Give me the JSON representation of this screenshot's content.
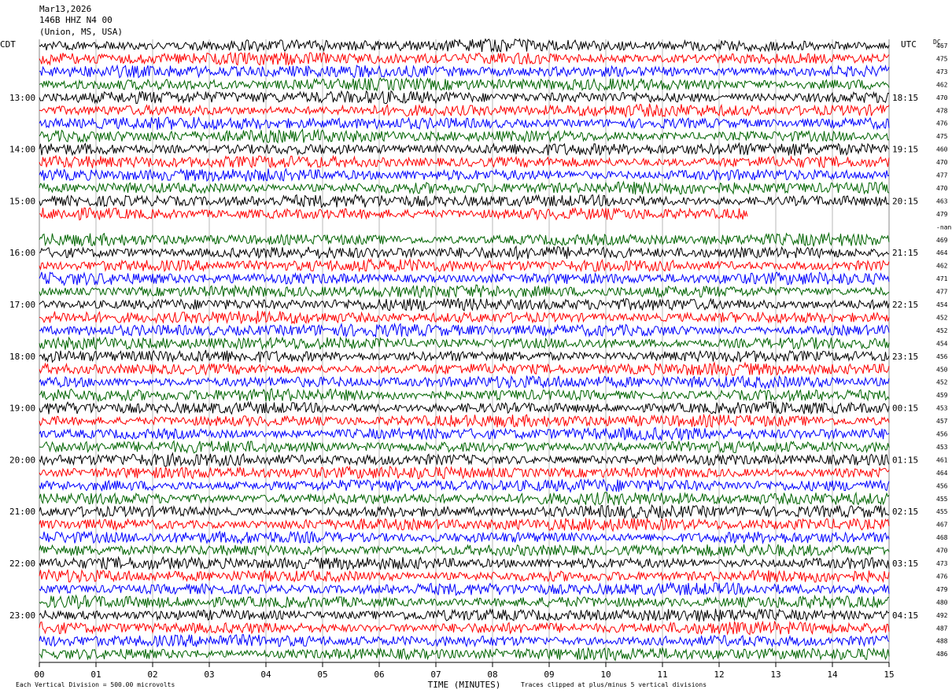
{
  "header": {
    "date": "Mar13,2026",
    "station": "146B HHZ N4 00",
    "location": "(Union, MS, USA)"
  },
  "left_axis_label": "CDT",
  "right_axis_label": "UTC",
  "dc_label": "DC",
  "colors": {
    "black": "#000000",
    "red": "#ff0000",
    "blue": "#0000ff",
    "green": "#006400",
    "grid": "#888888"
  },
  "chart_data": {
    "type": "line",
    "title": "",
    "xlabel": "TIME (MINUTES)",
    "xlim": [
      0,
      15
    ],
    "x_ticks": [
      "00",
      "01",
      "02",
      "03",
      "04",
      "05",
      "06",
      "07",
      "08",
      "09",
      "10",
      "11",
      "12",
      "13",
      "14",
      "15"
    ],
    "trace_minutes": 15,
    "series_colors": [
      "black",
      "red",
      "blue",
      "green"
    ],
    "local_hour_labels": [
      "13:00",
      "14:00",
      "15:00",
      "16:00",
      "17:00",
      "18:00",
      "19:00",
      "20:00",
      "21:00",
      "22:00",
      "23:00"
    ],
    "utc_hour_labels": [
      "18:15",
      "19:15",
      "20:15",
      "21:15",
      "22:15",
      "23:15",
      "00:15",
      "01:15",
      "02:15",
      "03:15",
      "04:15"
    ],
    "dc_offsets": [
      "467",
      "475",
      "473",
      "462",
      "470",
      "478",
      "476",
      "475",
      "460",
      "470",
      "477",
      "470",
      "463",
      "479",
      "-nan",
      "469",
      "464",
      "462",
      "471",
      "477",
      "454",
      "452",
      "452",
      "454",
      "456",
      "450",
      "452",
      "459",
      "453",
      "457",
      "456",
      "453",
      "461",
      "464",
      "456",
      "455",
      "455",
      "467",
      "468",
      "470",
      "473",
      "476",
      "479",
      "480",
      "492",
      "487",
      "488",
      "486"
    ],
    "trace_end_minutes": [
      15,
      15,
      15,
      15,
      15,
      15,
      15,
      15,
      15,
      15,
      15,
      15,
      15,
      12.5,
      0,
      15,
      15,
      15,
      15,
      15,
      15,
      15,
      15,
      15,
      15,
      15,
      15,
      15,
      15,
      15,
      15,
      15,
      15,
      15,
      15,
      15,
      15,
      15,
      15,
      15,
      15,
      15,
      15,
      15,
      15,
      15,
      15,
      15
    ],
    "vertical_division_scale": "Each Vertical Division = 500.00 microvolts",
    "clip_note": "Traces clipped at plus/minus 5 vertical divisions"
  }
}
